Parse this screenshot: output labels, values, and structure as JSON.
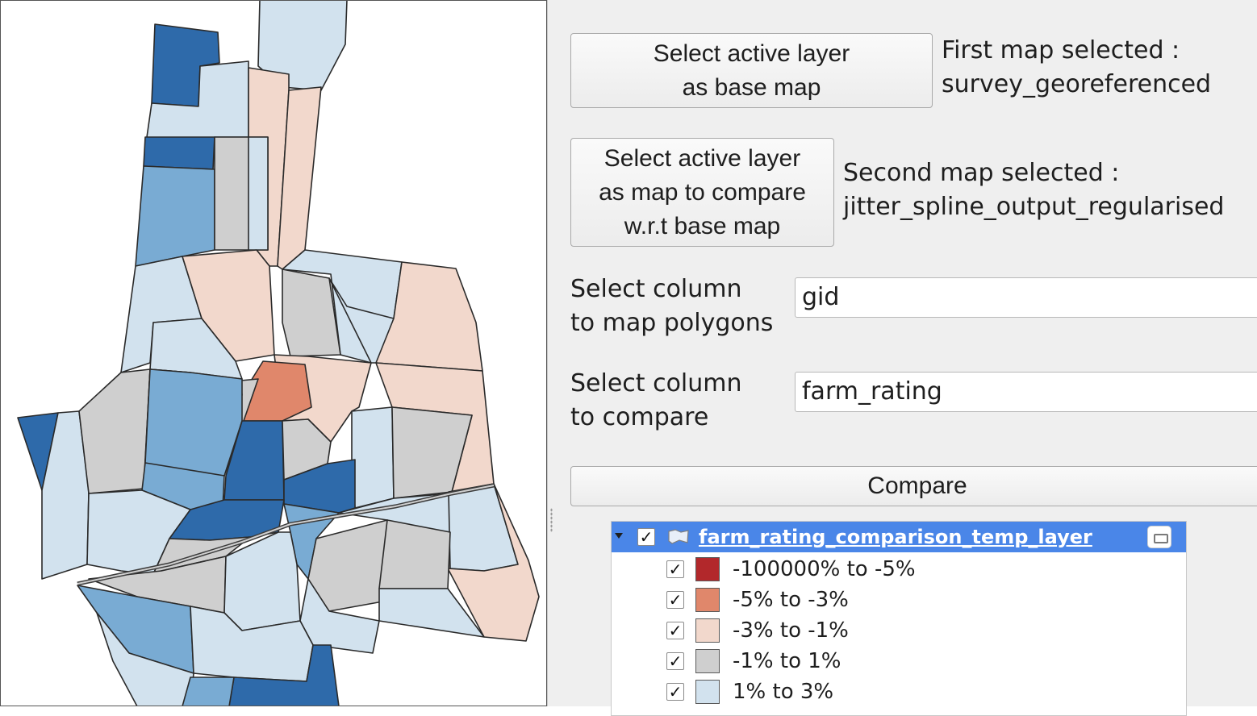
{
  "buttons": {
    "base_map": "Select active layer\nas base map",
    "compare_map": "Select active layer\nas map to compare\nw.r.t base map",
    "compare": "Compare"
  },
  "status": {
    "first_map": "First map selected :\nsurvey_georeferenced",
    "second_map": "Second map selected :\njitter_spline_output_regularised"
  },
  "fields": {
    "map_polygons": {
      "label": "Select column\nto map polygons",
      "value": "gid"
    },
    "compare_column": {
      "label": "Select column\nto compare",
      "value": "farm_rating"
    }
  },
  "legend": {
    "layer_name": "farm_rating_comparison_temp_layer",
    "classes": [
      {
        "label": "-100000% to -5%",
        "color": "#b2282b"
      },
      {
        "label": "-5% to -3%",
        "color": "#e0876b"
      },
      {
        "label": "-3% to -1%",
        "color": "#f2d8cc"
      },
      {
        "label": "-1% to 1%",
        "color": "#cfcfcf"
      },
      {
        "label": "1% to 3%",
        "color": "#d2e2ee"
      }
    ]
  },
  "map_colors": {
    "dark_blue": "#2e6aaa",
    "mid_blue": "#79abd3",
    "light_blue": "#d2e2ee",
    "grey": "#cfcfcf",
    "light_salmon": "#f2d8cc",
    "salmon": "#e0876b"
  }
}
